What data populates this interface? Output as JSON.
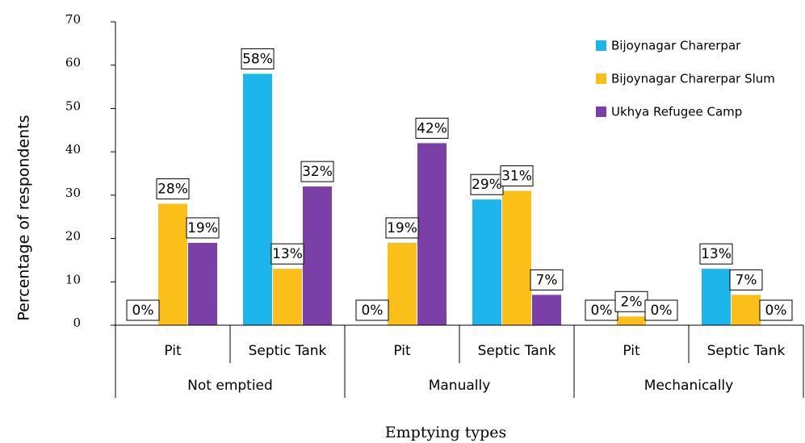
{
  "chart_data": {
    "type": "bar",
    "y_label": "Percentage of respondents",
    "x_label": "Emptying types",
    "categories": [
      "Pit",
      "Septic Tank",
      "Pit",
      "Septic Tank",
      "Pit",
      "Septic Tank"
    ],
    "groups": [
      "Not emptied",
      "Manually",
      "Mechanically"
    ],
    "series": [
      {
        "name": "Bijoynagar Charerpar",
        "color": "#1cb5ec",
        "values": [
          0,
          58,
          0,
          29,
          0,
          13
        ],
        "value_labels": [
          "0%",
          "58%",
          "0%",
          "29%",
          "0%",
          "13%"
        ]
      },
      {
        "name": "Bijoynagar Charerpar Slum",
        "color": "#fbbf1a",
        "values": [
          28,
          13,
          19,
          31,
          2,
          7
        ],
        "value_labels": [
          "28%",
          "13%",
          "19%",
          "31%",
          "2%",
          "7%"
        ]
      },
      {
        "name": "Ukhya Refugee Camp",
        "color": "#7b3fa8",
        "values": [
          19,
          32,
          42,
          7,
          0,
          0
        ],
        "value_labels": [
          "19%",
          "32%",
          "42%",
          "7%",
          "0%",
          "0%"
        ]
      }
    ],
    "ylim": [
      0,
      70
    ],
    "yticks": [
      0,
      10,
      20,
      30,
      40,
      50,
      60,
      70
    ],
    "legend": "top-right"
  }
}
